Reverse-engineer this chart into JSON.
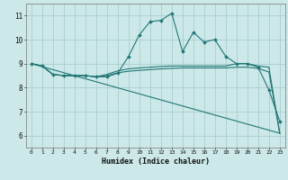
{
  "xlabel": "Humidex (Indice chaleur)",
  "background_color": "#cce8e8",
  "grid_color": "#aacece",
  "line_color": "#227777",
  "xlim": [
    -0.5,
    23.5
  ],
  "ylim": [
    5.5,
    11.5
  ],
  "xticks": [
    0,
    1,
    2,
    3,
    4,
    5,
    6,
    7,
    8,
    9,
    10,
    11,
    12,
    13,
    14,
    15,
    16,
    17,
    18,
    19,
    20,
    21,
    22,
    23
  ],
  "yticks": [
    6,
    7,
    8,
    9,
    10,
    11
  ],
  "series": [
    {
      "x": [
        0,
        1,
        2,
        3,
        4,
        5,
        6,
        7,
        8,
        9,
        10,
        11,
        12,
        13,
        14,
        15,
        16,
        17,
        18,
        19,
        20,
        21,
        22,
        23
      ],
      "y": [
        9.0,
        8.9,
        8.55,
        8.5,
        8.5,
        8.5,
        8.45,
        8.45,
        8.6,
        9.3,
        10.2,
        10.75,
        10.8,
        11.1,
        9.5,
        10.3,
        9.9,
        10.0,
        9.3,
        9.0,
        9.0,
        8.85,
        7.9,
        6.6
      ],
      "marker": true
    },
    {
      "x": [
        0,
        1,
        2,
        3,
        4,
        5,
        6,
        7,
        8,
        9,
        10,
        11,
        12,
        13,
        14,
        15,
        16,
        17,
        18,
        19,
        20,
        21,
        22,
        23
      ],
      "y": [
        9.0,
        8.9,
        8.55,
        8.5,
        8.5,
        8.5,
        8.45,
        8.55,
        8.7,
        8.78,
        8.82,
        8.85,
        8.88,
        8.9,
        8.9,
        8.9,
        8.9,
        8.9,
        8.9,
        9.0,
        9.0,
        8.9,
        8.85,
        6.1
      ],
      "marker": false
    },
    {
      "x": [
        0,
        1,
        2,
        3,
        4,
        5,
        6,
        7,
        8,
        9,
        10,
        11,
        12,
        13,
        14,
        15,
        16,
        17,
        18,
        19,
        20,
        21,
        22,
        23
      ],
      "y": [
        9.0,
        8.9,
        8.55,
        8.5,
        8.5,
        8.5,
        8.45,
        8.5,
        8.62,
        8.68,
        8.72,
        8.75,
        8.78,
        8.8,
        8.82,
        8.82,
        8.82,
        8.82,
        8.82,
        8.85,
        8.85,
        8.8,
        8.65,
        6.1
      ],
      "marker": false
    },
    {
      "x": [
        0,
        23
      ],
      "y": [
        9.0,
        6.1
      ],
      "marker": false
    }
  ]
}
